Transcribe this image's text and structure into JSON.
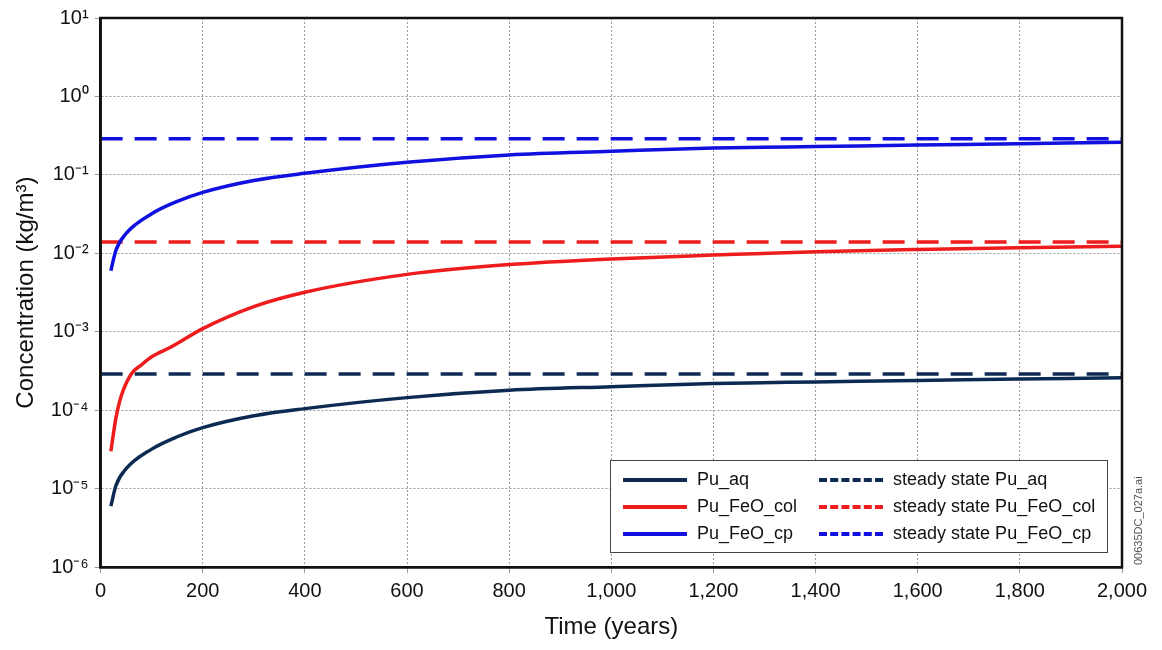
{
  "chart_data": {
    "type": "line",
    "xlabel": "Time (years)",
    "ylabel": "Concentration (kg/m³)",
    "log": "y",
    "grid": true,
    "legend": "bottom right",
    "marker": "none",
    "xlim": [
      0,
      2000
    ],
    "xticks": [
      0,
      200,
      400,
      600,
      800,
      {
        "value": 1000,
        "label": "1,000"
      },
      {
        "value": 1200,
        "label": "1,200"
      },
      {
        "value": 1400,
        "label": "1,400"
      },
      {
        "value": 1600,
        "label": "1,600"
      },
      {
        "value": 1800,
        "label": "1,800"
      },
      {
        "value": 2000,
        "label": "2,000"
      }
    ],
    "ylim": [
      1e-06,
      10
    ],
    "yticks": [
      {
        "value": 10,
        "label": "10¹"
      },
      {
        "value": 1,
        "label": "10⁰"
      },
      {
        "value": 0.1,
        "label": "10⁻¹"
      },
      {
        "value": 0.01,
        "label": "10⁻²"
      },
      {
        "value": 0.001,
        "label": "10⁻³"
      },
      {
        "value": 0.0001,
        "label": "10⁻⁴"
      },
      {
        "value": 1e-05,
        "label": "10⁻⁵"
      },
      {
        "value": 1e-06,
        "label": "10⁻⁶"
      }
    ],
    "x": [
      20,
      30,
      50,
      100,
      150,
      200,
      300,
      400,
      600,
      800,
      1000,
      1200,
      1400,
      1600,
      1800,
      2000
    ],
    "series": [
      {
        "name": "Pu_aq",
        "color": "#0d2a52",
        "line_style": "solid",
        "values": [
          6e-06,
          1.1e-05,
          1.8e-05,
          3.2e-05,
          4.6e-05,
          6e-05,
          8.5e-05,
          0.000105,
          0.000145,
          0.00018,
          0.0002,
          0.00022,
          0.00023,
          0.00024,
          0.00025,
          0.00026
        ]
      },
      {
        "name": "Pu_FeO_col",
        "color": "#ee1c1c",
        "line_style": "solid",
        "x": [
          20,
          30,
          40,
          60,
          80,
          100,
          136,
          200,
          300,
          400,
          600,
          800,
          1000,
          1200,
          1400,
          1600,
          1800,
          2000
        ],
        "values": [
          3e-05,
          8e-05,
          0.00015,
          0.00029,
          0.00038,
          0.00048,
          0.00063,
          0.0011,
          0.0021,
          0.0032,
          0.0054,
          0.0072,
          0.0085,
          0.0095,
          0.0105,
          0.0112,
          0.0118,
          0.0123
        ]
      },
      {
        "name": "Pu_FeO_cp",
        "color": "#1010e0",
        "line_style": "solid",
        "values": [
          0.006,
          0.011,
          0.018,
          0.032,
          0.046,
          0.06,
          0.085,
          0.105,
          0.145,
          0.18,
          0.2,
          0.22,
          0.23,
          0.24,
          0.25,
          0.26
        ]
      },
      {
        "name": "steady state Pu_aq",
        "color": "#0d2a52",
        "line_style": "dashed",
        "x": [
          0,
          2000
        ],
        "values": [
          0.00029,
          0.00029
        ]
      },
      {
        "name": "steady state Pu_FeO_col",
        "color": "#ee1c1c",
        "line_style": "dashed",
        "x": [
          0,
          2000
        ],
        "values": [
          0.014,
          0.014
        ]
      },
      {
        "name": "steady state Pu_FeO_cp",
        "color": "#1010e0",
        "line_style": "dashed",
        "x": [
          0,
          2000
        ],
        "values": [
          0.29,
          0.29
        ]
      }
    ],
    "annotations": [
      "00635DC_027a.ai"
    ]
  }
}
